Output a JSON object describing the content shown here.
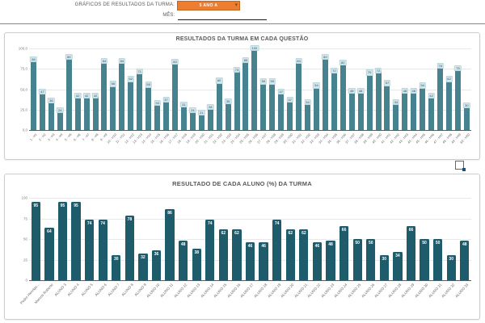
{
  "header": {
    "label": "GRÁFICOS DE RESULTADOS DA TURMA:",
    "dropdown_value": "5 ANO A",
    "dropdown_arrow": "▾",
    "mes_label": "MÊS:",
    "mes_value": ""
  },
  "colors": {
    "dropdown_bg": "#ed7d31",
    "chart1_bar": "#47828f",
    "chart2_bar": "#1e5b6b",
    "title_text": "#595959",
    "shape_icon_blue": "#2e75b6"
  },
  "chart_data": [
    {
      "type": "bar",
      "title": "RESULTADOS DA TURMA EM CADA QUESTÃO",
      "xlabel": "",
      "ylabel": "",
      "ylim": [
        0,
        100
      ],
      "grid": true,
      "legend": "none",
      "bar_color": "#47828f",
      "yticks": [
        "100,0",
        "75,0",
        "50,0",
        "25,0",
        "0,0"
      ],
      "categories": [
        "1 - H1",
        "2 - H2",
        "3 - H3",
        "4 - H4",
        "5 - H5",
        "6 - H6",
        "7 - H7",
        "8 - H8",
        "9 - H9",
        "10 - H10",
        "11 - H11",
        "12 - H12",
        "13 - H13",
        "14 - H14",
        "15 - H15",
        "16 - H16",
        "17 - H17",
        "18 - H18",
        "19 - H19",
        "20 - H20",
        "21 - H21",
        "22 - H22",
        "23 - H23",
        "24 - H24",
        "25 - H25",
        "26 - H26",
        "27 - H27",
        "28 - H28",
        "29 - H29",
        "30 - H30",
        "31 - H31",
        "32 - H32",
        "33 - H33",
        "34 - H34",
        "35 - H35",
        "36 - H36",
        "37 - H37",
        "38 - H38",
        "39 - H39",
        "40 - H40",
        "41 - H41",
        "42 - H42",
        "43 - H43",
        "44 - H44",
        "45 - H45",
        "46 - H46",
        "47 - H47",
        "48 - H48",
        "49 - H49",
        "50 - H50"
      ],
      "values": [
        86,
        47,
        36,
        24,
        89,
        42,
        42,
        42,
        84,
        56,
        84,
        62,
        71,
        55,
        33,
        37,
        83,
        31,
        24,
        21,
        28,
        60,
        35,
        73,
        85,
        100,
        59,
        59,
        47,
        37,
        84,
        34,
        54,
        89,
        72,
        82,
        48,
        48,
        70,
        72,
        57,
        34,
        48,
        48,
        54,
        42,
        78,
        62,
        75,
        30
      ]
    },
    {
      "type": "bar",
      "title": "RESULTADO DE CADA ALUNO (%) DA TURMA",
      "xlabel": "",
      "ylabel": "",
      "ylim": [
        0,
        100
      ],
      "grid": true,
      "legend": "none",
      "bar_color": "#1e5b6b",
      "yticks": [
        "100",
        "75",
        "50",
        "25",
        "0"
      ],
      "categories": [
        "Pedro Henriqu...",
        "Marcos Roberto",
        "ALUNO 3",
        "ALUNO 4",
        "ALUNO 5",
        "ALUNO 6",
        "ALUNO 7",
        "ALUNO 8",
        "ALUNO 9",
        "ALUNO 10",
        "ALUNO 11",
        "ALUNO 12",
        "ALUNO 13",
        "ALUNO 14",
        "ALUNO 15",
        "ALUNO 16",
        "ALUNO 17",
        "ALUNO 18",
        "ALUNO 19",
        "ALUNO 20",
        "ALUNO 21",
        "ALUNO 22",
        "ALUNO 23",
        "ALUNO 24",
        "ALUNO 25",
        "ALUNO 26",
        "ALUNO 27",
        "ALUNO 28",
        "ALUNO 29",
        "ALUNO 30",
        "ALUNO 31",
        "ALUNO 32",
        "ALUNO 33"
      ],
      "values": [
        95,
        64,
        95,
        95,
        74,
        74,
        30,
        78,
        32,
        36,
        86,
        48,
        38,
        74,
        62,
        62,
        46,
        46,
        74,
        62,
        62,
        46,
        48,
        66,
        50,
        50,
        30,
        34,
        66,
        50,
        50,
        30,
        48
      ]
    }
  ]
}
